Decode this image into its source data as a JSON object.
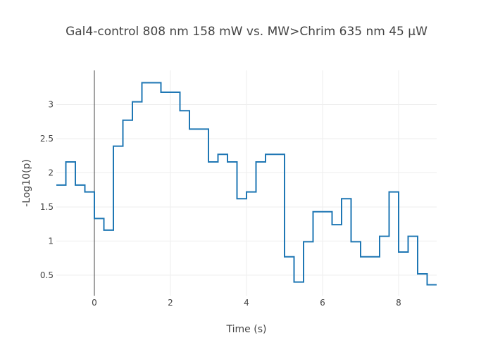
{
  "chart_data": {
    "type": "line",
    "line_shape": "step",
    "title": "Gal4-control 808 nm 158 mW vs. MW>Chrim 635 nm 45 µW",
    "xlabel": "Time (s)",
    "ylabel": "-Log10(p)",
    "xlim": [
      -1,
      9
    ],
    "ylim": [
      0.2,
      3.5
    ],
    "xticks": [
      0,
      2,
      4,
      6,
      8
    ],
    "yticks": [
      0.5,
      1,
      1.5,
      2,
      2.5,
      3
    ],
    "grid": true,
    "legend": "none",
    "series": [
      {
        "color": "#1f77b4",
        "x": [
          -1.0,
          -0.75,
          -0.5,
          -0.25,
          0.0,
          0.25,
          0.5,
          0.75,
          1.0,
          1.25,
          1.5,
          1.75,
          2.0,
          2.25,
          2.5,
          2.75,
          3.0,
          3.25,
          3.5,
          3.75,
          4.0,
          4.25,
          4.5,
          4.75,
          5.0,
          5.25,
          5.5,
          5.75,
          6.0,
          6.25,
          6.5,
          6.75,
          7.0,
          7.25,
          7.5,
          7.75,
          8.0,
          8.25,
          8.5,
          8.75,
          9.0
        ],
        "y": [
          1.82,
          2.16,
          1.82,
          1.72,
          1.33,
          1.16,
          2.39,
          2.77,
          3.04,
          3.32,
          3.32,
          3.18,
          3.18,
          2.91,
          2.64,
          2.64,
          2.16,
          2.27,
          2.16,
          1.62,
          1.72,
          2.16,
          2.27,
          2.27,
          0.77,
          0.4,
          0.99,
          1.43,
          1.43,
          1.24,
          1.62,
          0.99,
          0.77,
          0.77,
          1.07,
          1.72,
          0.84,
          1.07,
          0.52,
          0.36,
          0.36
        ]
      }
    ]
  }
}
